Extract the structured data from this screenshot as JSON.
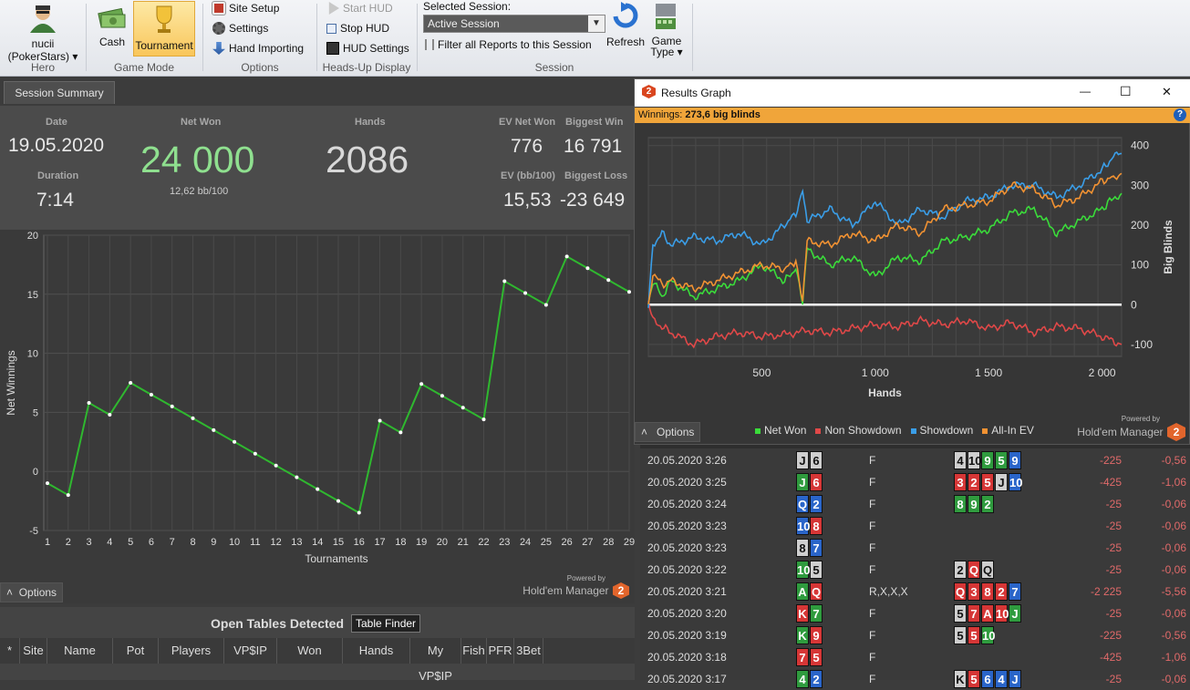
{
  "ribbon": {
    "hero": {
      "name": "nucii",
      "site": "(PokerStars)",
      "dropdown": "▾",
      "label": "Hero"
    },
    "game_mode": {
      "cash": "Cash",
      "tournament": "Tournament",
      "label": "Game Mode"
    },
    "options": {
      "site_setup": "Site Setup",
      "settings": "Settings",
      "hand_importing": "Hand Importing",
      "label": "Options"
    },
    "hud": {
      "start": "Start HUD",
      "stop": "Stop HUD",
      "settings": "HUD Settings",
      "label": "Heads-Up Display"
    },
    "session": {
      "title": "Selected Session:",
      "value": "Active Session",
      "filter": "Filter all Reports to this Session",
      "label": "Session"
    },
    "refresh": "Refresh",
    "game_type": "Game",
    "game_type2": "Type ▾"
  },
  "tab": "Session Summary",
  "summary": {
    "date_label": "Date",
    "date": "19.05.2020",
    "duration_label": "Duration",
    "duration": "7:14",
    "netwon_label": "Net Won",
    "netwon": "24 000",
    "bb100": "12,62 bb/100",
    "hands_label": "Hands",
    "hands": "2086",
    "ev_label": "EV Net Won",
    "ev": "776",
    "biggest_win_label": "Biggest Win",
    "biggest_win": "16 791",
    "evbb_label": "EV (bb/100)",
    "evbb": "15,53",
    "biggest_loss_label": "Biggest Loss",
    "biggest_loss": "-23 649"
  },
  "left_chart_data": {
    "type": "line",
    "xlabel": "Tournaments",
    "ylabel": "Net Winnings",
    "x": [
      1,
      2,
      3,
      4,
      5,
      6,
      7,
      8,
      9,
      10,
      11,
      12,
      13,
      14,
      15,
      16,
      17,
      18,
      19,
      20,
      21,
      22,
      23,
      24,
      25,
      26,
      27,
      28,
      29
    ],
    "values": [
      -1,
      -2,
      5.8,
      4.8,
      7.5,
      6.5,
      5.5,
      4.5,
      3.5,
      2.5,
      1.5,
      0.5,
      -0.5,
      -1.5,
      -2.5,
      -3.5,
      4.3,
      3.3,
      7.4,
      6.4,
      5.4,
      4.4,
      16.1,
      15.1,
      14.1,
      18.2,
      17.2,
      16.2,
      15.2
    ],
    "yticks": [
      -5,
      0,
      5,
      10,
      15,
      20
    ],
    "ylim": [
      -5,
      20
    ],
    "color": "#2fb82f"
  },
  "left_options": "Options",
  "powered_by": "Powered by",
  "hem": "Hold'em Manager",
  "hem_badge": "2",
  "open_tables": {
    "title": "Open Tables Detected",
    "finder": "Table Finder",
    "columns": [
      "*",
      "Site",
      "Name",
      "Pot",
      "Players",
      "VP$IP",
      "Won",
      "Hands",
      "My VP$IP",
      "Fish",
      "PFR",
      "3Bet"
    ]
  },
  "graph_window": {
    "title": "Results Graph",
    "winnings_label": "Winnings:",
    "winnings_value": "273,6 big blinds",
    "help": "?",
    "minimize": "—",
    "maximize": "☐",
    "close": "✕",
    "options": "Options",
    "xlabel": "Hands",
    "ylabel": "Big Blinds",
    "xticks": [
      "500",
      "1 000",
      "1 500",
      "2 000"
    ],
    "yticks": [
      "400",
      "300",
      "200",
      "100",
      "0",
      "-100"
    ],
    "legend": [
      {
        "name": "Net Won",
        "color": "#3adc3a"
      },
      {
        "name": "Non Showdown",
        "color": "#e04848"
      },
      {
        "name": "Showdown",
        "color": "#3a9ee8"
      },
      {
        "name": "All-In EV",
        "color": "#f29232"
      }
    ]
  },
  "chart_data": {
    "type": "line",
    "xlabel": "Hands",
    "ylabel": "Big Blinds",
    "xlim": [
      0,
      2086
    ],
    "ylim": [
      -130,
      420
    ],
    "series": [
      {
        "name": "Net Won",
        "x": [
          0,
          20,
          60,
          100,
          200,
          300,
          400,
          500,
          600,
          650,
          680,
          700,
          800,
          900,
          1000,
          1100,
          1200,
          1300,
          1400,
          1500,
          1600,
          1700,
          1800,
          1900,
          2000,
          2050,
          2086
        ],
        "values": [
          0,
          60,
          20,
          60,
          20,
          40,
          60,
          100,
          60,
          90,
          0,
          140,
          100,
          120,
          70,
          120,
          110,
          160,
          170,
          190,
          230,
          240,
          180,
          210,
          240,
          270,
          280
        ]
      },
      {
        "name": "Non Showdown",
        "x": [
          0,
          20,
          100,
          200,
          300,
          400,
          500,
          600,
          700,
          800,
          900,
          1000,
          1100,
          1200,
          1300,
          1400,
          1500,
          1600,
          1700,
          1800,
          1900,
          2000,
          2086
        ],
        "values": [
          0,
          -40,
          -70,
          -100,
          -80,
          -70,
          -80,
          -75,
          -65,
          -70,
          -60,
          -50,
          -55,
          -40,
          -50,
          -40,
          -60,
          -45,
          -70,
          -55,
          -60,
          -80,
          -100
        ]
      },
      {
        "name": "Showdown",
        "x": [
          0,
          20,
          60,
          100,
          200,
          300,
          400,
          500,
          600,
          650,
          680,
          700,
          800,
          900,
          1000,
          1100,
          1200,
          1300,
          1400,
          1500,
          1600,
          1700,
          1800,
          1900,
          2000,
          2050,
          2086
        ],
        "values": [
          0,
          150,
          180,
          150,
          170,
          160,
          180,
          150,
          200,
          230,
          290,
          210,
          240,
          200,
          260,
          200,
          240,
          220,
          260,
          270,
          300,
          300,
          270,
          300,
          340,
          370,
          380
        ]
      },
      {
        "name": "All-In EV",
        "x": [
          0,
          20,
          60,
          100,
          200,
          300,
          400,
          500,
          600,
          650,
          680,
          700,
          800,
          900,
          1000,
          1100,
          1200,
          1300,
          1400,
          1500,
          1600,
          1700,
          1800,
          1900,
          2000,
          2050,
          2086
        ],
        "values": [
          0,
          80,
          50,
          60,
          40,
          60,
          80,
          100,
          90,
          110,
          0,
          160,
          150,
          180,
          160,
          200,
          180,
          240,
          250,
          260,
          300,
          290,
          250,
          270,
          310,
          320,
          330
        ]
      }
    ]
  },
  "history": [
    {
      "time": "20.05.2020 3:26",
      "hole": [
        [
          "J",
          "s"
        ],
        [
          "6",
          "s"
        ]
      ],
      "action": "F",
      "board": [
        [
          "4",
          "s"
        ],
        [
          "10",
          "s"
        ],
        [
          "9",
          "c"
        ],
        [
          "5",
          "c"
        ],
        [
          "9",
          "d"
        ]
      ],
      "won": "-225",
      "bb": "-0,56"
    },
    {
      "time": "20.05.2020 3:25",
      "hole": [
        [
          "J",
          "c"
        ],
        [
          "6",
          "h"
        ]
      ],
      "action": "F",
      "board": [
        [
          "3",
          "h"
        ],
        [
          "2",
          "h"
        ],
        [
          "5",
          "h"
        ],
        [
          "J",
          "s"
        ],
        [
          "10",
          "d"
        ]
      ],
      "won": "-425",
      "bb": "-1,06"
    },
    {
      "time": "20.05.2020 3:24",
      "hole": [
        [
          "Q",
          "d"
        ],
        [
          "2",
          "d"
        ]
      ],
      "action": "F",
      "board": [
        [
          "8",
          "c"
        ],
        [
          "9",
          "c"
        ],
        [
          "2",
          "c"
        ]
      ],
      "won": "-25",
      "bb": "-0,06"
    },
    {
      "time": "20.05.2020 3:23",
      "hole": [
        [
          "10",
          "d"
        ],
        [
          "8",
          "h"
        ]
      ],
      "action": "F",
      "board": [],
      "won": "-25",
      "bb": "-0,06"
    },
    {
      "time": "20.05.2020 3:23",
      "hole": [
        [
          "8",
          "s"
        ],
        [
          "7",
          "d"
        ]
      ],
      "action": "F",
      "board": [],
      "won": "-25",
      "bb": "-0,06"
    },
    {
      "time": "20.05.2020 3:22",
      "hole": [
        [
          "10",
          "c"
        ],
        [
          "5",
          "s"
        ]
      ],
      "action": "F",
      "board": [
        [
          "2",
          "s"
        ],
        [
          "Q",
          "h"
        ],
        [
          "Q",
          "s"
        ]
      ],
      "won": "-25",
      "bb": "-0,06"
    },
    {
      "time": "20.05.2020 3:21",
      "hole": [
        [
          "A",
          "c"
        ],
        [
          "Q",
          "h"
        ]
      ],
      "action": "R,X,X,X",
      "board": [
        [
          "Q",
          "h"
        ],
        [
          "3",
          "h"
        ],
        [
          "8",
          "h"
        ],
        [
          "2",
          "h"
        ],
        [
          "7",
          "d"
        ]
      ],
      "won": "-2 225",
      "bb": "-5,56"
    },
    {
      "time": "20.05.2020 3:20",
      "hole": [
        [
          "K",
          "h"
        ],
        [
          "7",
          "c"
        ]
      ],
      "action": "F",
      "board": [
        [
          "5",
          "s"
        ],
        [
          "7",
          "h"
        ],
        [
          "A",
          "h"
        ],
        [
          "10",
          "h"
        ],
        [
          "J",
          "c"
        ]
      ],
      "won": "-25",
      "bb": "-0,06"
    },
    {
      "time": "20.05.2020 3:19",
      "hole": [
        [
          "K",
          "c"
        ],
        [
          "9",
          "h"
        ]
      ],
      "action": "F",
      "board": [
        [
          "5",
          "s"
        ],
        [
          "5",
          "h"
        ],
        [
          "10",
          "c"
        ]
      ],
      "won": "-225",
      "bb": "-0,56"
    },
    {
      "time": "20.05.2020 3:18",
      "hole": [
        [
          "7",
          "h"
        ],
        [
          "5",
          "h"
        ]
      ],
      "action": "F",
      "board": [],
      "won": "-425",
      "bb": "-1,06"
    },
    {
      "time": "20.05.2020 3:17",
      "hole": [
        [
          "4",
          "c"
        ],
        [
          "2",
          "d"
        ]
      ],
      "action": "F",
      "board": [
        [
          "K",
          "s"
        ],
        [
          "5",
          "h"
        ],
        [
          "6",
          "d"
        ],
        [
          "4",
          "d"
        ],
        [
          "J",
          "d"
        ]
      ],
      "won": "-25",
      "bb": "-0,06"
    }
  ]
}
